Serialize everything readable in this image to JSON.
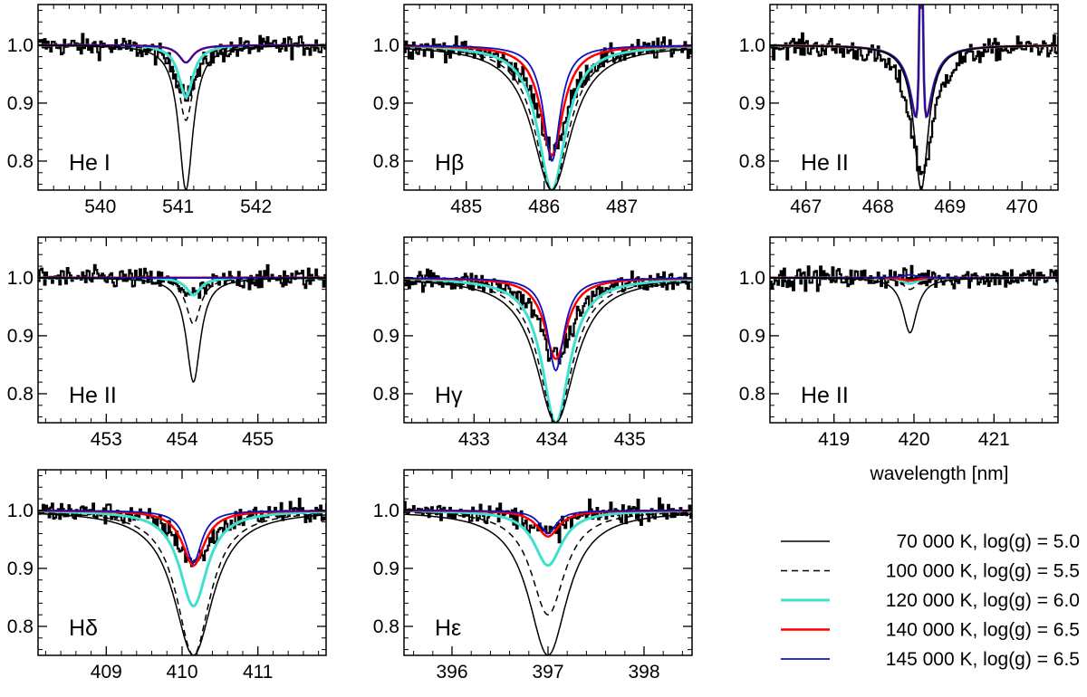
{
  "figure": {
    "xlabel": "wavelength [nm]"
  },
  "legend": {
    "items": [
      {
        "label": "70 000 K, log(g) = 5.0",
        "color": "#000000",
        "dash": "solid",
        "width": 1.5
      },
      {
        "label": "100 000 K, log(g) = 5.5",
        "color": "#000000",
        "dash": "dashed",
        "width": 1.5
      },
      {
        "label": "120 000 K, log(g) = 6.0",
        "color": "#40e0d0",
        "dash": "solid",
        "width": 3
      },
      {
        "label": "140 000 K, log(g) = 6.5",
        "color": "#ff0000",
        "dash": "solid",
        "width": 2.5
      },
      {
        "label": "145 000 K, log(g) = 6.5",
        "color": "#1010c0",
        "dash": "solid",
        "width": 1.8
      }
    ]
  },
  "chart_data": [
    {
      "type": "line",
      "line_label": "He I",
      "center": 541.1,
      "xlim": [
        539.2,
        542.9
      ],
      "ylim": [
        0.75,
        1.07
      ],
      "xticks": [
        540,
        541,
        542
      ],
      "xtick_labels": [
        "540",
        "541",
        "542"
      ],
      "yticks": [
        0.8,
        0.9,
        1.0
      ],
      "ytick_labels": [
        "0.8",
        "0.9",
        "1.0"
      ],
      "model_minima": [
        0.75,
        0.87,
        0.91,
        0.97,
        0.97
      ],
      "observed_min": 0.92
    },
    {
      "type": "line",
      "line_label": "Hβ",
      "center": 486.1,
      "xlim": [
        484.2,
        487.9
      ],
      "ylim": [
        0.75,
        1.07
      ],
      "xticks": [
        485,
        486,
        487
      ],
      "xtick_labels": [
        "485",
        "486",
        "487"
      ],
      "yticks": [
        0.8,
        0.9,
        1.0
      ],
      "ytick_labels": [
        "0.8",
        "0.9",
        "1.0"
      ],
      "model_minima": [
        0.75,
        0.75,
        0.75,
        0.81,
        0.8
      ],
      "observed_min": 0.82
    },
    {
      "type": "line",
      "line_label": "He II",
      "center": 468.6,
      "xlim": [
        466.5,
        470.5
      ],
      "ylim": [
        0.75,
        1.07
      ],
      "xticks": [
        467,
        468,
        469,
        470
      ],
      "xtick_labels": [
        "467",
        "468",
        "469",
        "470"
      ],
      "yticks": [
        0.8,
        0.9,
        1.0
      ],
      "ytick_labels": [
        "0.8",
        "0.9",
        "1.0"
      ],
      "model_minima": [
        0.75,
        0.75,
        0.75,
        0.75,
        0.75
      ],
      "observed_min": 0.78
    },
    {
      "type": "line",
      "line_label": "He II",
      "center": 454.15,
      "xlim": [
        452.1,
        455.9
      ],
      "ylim": [
        0.75,
        1.07
      ],
      "xticks": [
        453,
        454,
        455
      ],
      "xtick_labels": [
        "453",
        "454",
        "455"
      ],
      "yticks": [
        0.8,
        0.9,
        1.0
      ],
      "ytick_labels": [
        "0.8",
        "0.9",
        "1.0"
      ],
      "model_minima": [
        0.82,
        0.92,
        0.97,
        1.0,
        1.0
      ],
      "observed_min": 0.97
    },
    {
      "type": "line",
      "line_label": "Hγ",
      "center": 434.05,
      "xlim": [
        432.1,
        435.8
      ],
      "ylim": [
        0.75,
        1.07
      ],
      "xticks": [
        433,
        434,
        435
      ],
      "xtick_labels": [
        "433",
        "434",
        "435"
      ],
      "yticks": [
        0.8,
        0.9,
        1.0
      ],
      "ytick_labels": [
        "0.8",
        "0.9",
        "1.0"
      ],
      "model_minima": [
        0.75,
        0.75,
        0.75,
        0.86,
        0.84
      ],
      "observed_min": 0.86
    },
    {
      "type": "line",
      "line_label": "He II",
      "center": 419.95,
      "xlim": [
        418.2,
        421.8
      ],
      "ylim": [
        0.75,
        1.07
      ],
      "xticks": [
        419,
        420,
        421
      ],
      "xtick_labels": [
        "419",
        "420",
        "421"
      ],
      "yticks": [
        0.8,
        0.9,
        1.0
      ],
      "ytick_labels": [
        "0.8",
        "0.9",
        "1.0"
      ],
      "model_minima": [
        0.905,
        0.98,
        0.99,
        0.995,
        1.005
      ],
      "observed_min": 1.0
    },
    {
      "type": "line",
      "line_label": "Hδ",
      "center": 410.15,
      "xlim": [
        408.1,
        411.9
      ],
      "ylim": [
        0.75,
        1.07
      ],
      "xticks": [
        409,
        410,
        411
      ],
      "xtick_labels": [
        "409",
        "410",
        "411"
      ],
      "yticks": [
        0.8,
        0.9,
        1.0
      ],
      "ytick_labels": [
        "0.8",
        "0.9",
        "1.0"
      ],
      "model_minima": [
        0.75,
        0.75,
        0.835,
        0.905,
        0.91
      ],
      "observed_min": 0.91
    },
    {
      "type": "line",
      "line_label": "Hε",
      "center": 397.0,
      "xlim": [
        395.5,
        398.5
      ],
      "ylim": [
        0.75,
        1.07
      ],
      "xticks": [
        396,
        397,
        398
      ],
      "xtick_labels": [
        "396",
        "397",
        "398"
      ],
      "yticks": [
        0.8,
        0.9,
        1.0
      ],
      "ytick_labels": [
        "0.8",
        "0.9",
        "1.0"
      ],
      "model_minima": [
        0.75,
        0.82,
        0.905,
        0.955,
        0.96
      ],
      "observed_min": 0.96
    }
  ]
}
